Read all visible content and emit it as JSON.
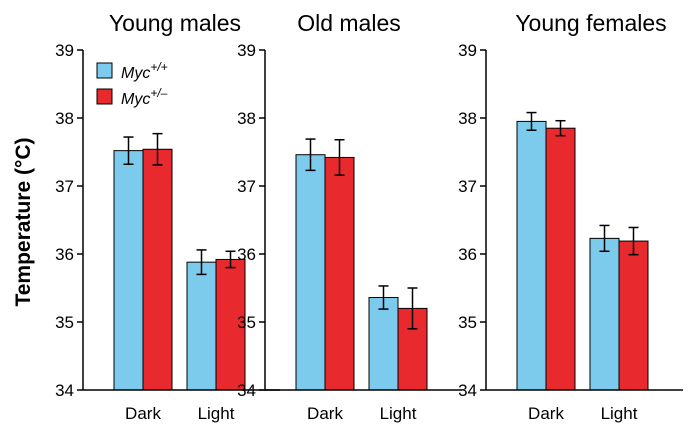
{
  "chart_data": {
    "type": "bar",
    "ylabel": "Temperature (°C)",
    "ylim": [
      34,
      39
    ],
    "yticks": [
      34,
      35,
      36,
      37,
      38,
      39
    ],
    "categories": [
      "Dark",
      "Light"
    ],
    "legend": {
      "placement": "top-left",
      "entries": [
        {
          "base": "Myc",
          "sup": "+/+",
          "color": "#7ccbec"
        },
        {
          "base": "Myc",
          "sup": "+/–",
          "color": "#e8292d"
        }
      ]
    },
    "panels": [
      {
        "title": "Young males",
        "series": [
          {
            "name": "Myc+/+",
            "color": "#7ccbec",
            "values": [
              37.52,
              35.88
            ],
            "errors": [
              0.2,
              0.18
            ]
          },
          {
            "name": "Myc+/–",
            "color": "#e8292d",
            "values": [
              37.54,
              35.92
            ],
            "errors": [
              0.23,
              0.12
            ]
          }
        ]
      },
      {
        "title": "Old males",
        "series": [
          {
            "name": "Myc+/+",
            "color": "#7ccbec",
            "values": [
              37.46,
              35.36
            ],
            "errors": [
              0.23,
              0.17
            ]
          },
          {
            "name": "Myc+/–",
            "color": "#e8292d",
            "values": [
              37.42,
              35.2
            ],
            "errors": [
              0.26,
              0.3
            ]
          }
        ]
      },
      {
        "title": "Young females",
        "series": [
          {
            "name": "Myc+/+",
            "color": "#7ccbec",
            "values": [
              37.95,
              36.23
            ],
            "errors": [
              0.13,
              0.19
            ]
          },
          {
            "name": "Myc+/–",
            "color": "#e8292d",
            "values": [
              37.85,
              36.19
            ],
            "errors": [
              0.11,
              0.2
            ]
          }
        ]
      }
    ]
  }
}
